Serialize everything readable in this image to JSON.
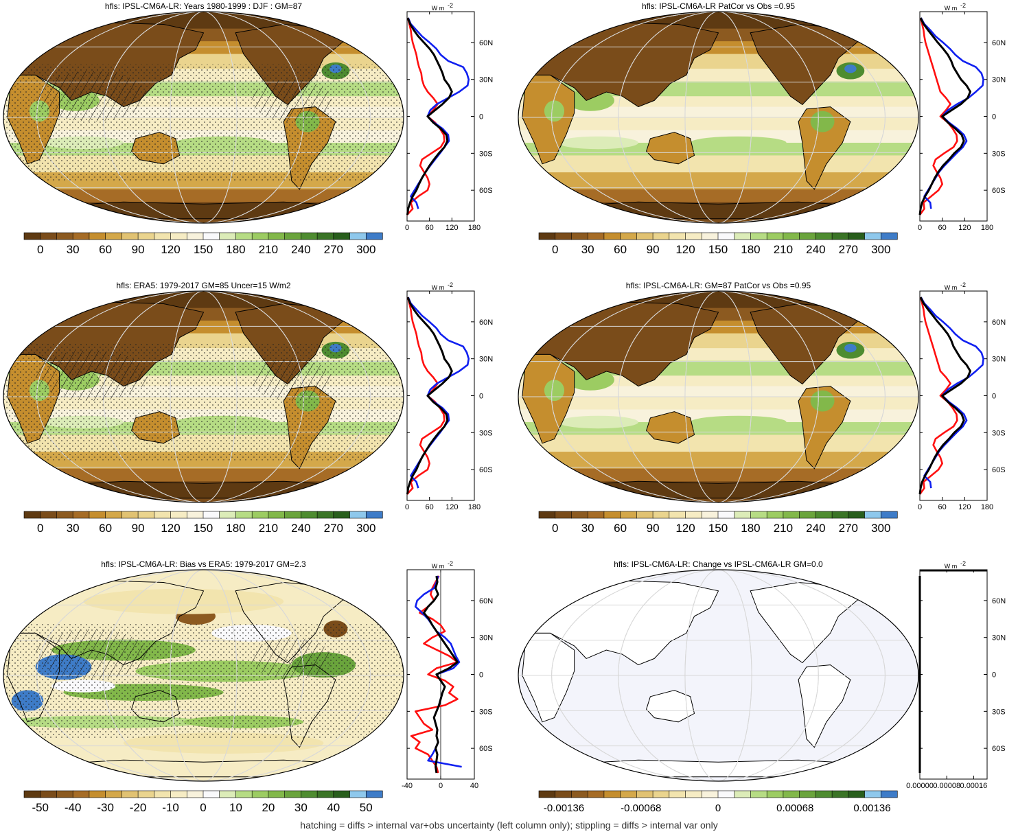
{
  "colors": {
    "map_palette": [
      "#5e3a12",
      "#7a4c1a",
      "#8c5a20",
      "#a66c26",
      "#c58e2e",
      "#d4a84a",
      "#e1c272",
      "#ead48e",
      "#f2e4ae",
      "#f6ecc4",
      "#f8f2dc",
      "#f9f9fb",
      "#dcecb8",
      "#b6dc84",
      "#9ccc62",
      "#82b84a",
      "#6aa43c",
      "#4e8c30",
      "#3a7426",
      "#285e1c",
      "#8ec8ec",
      "#3e7cc8"
    ],
    "model": "#000000",
    "obs_a": "#ff1010",
    "obs_b": "#1020f0",
    "ocean_blank": "#f3f4fb"
  },
  "panels": [
    {
      "id": "model-clim",
      "title": "hfls: IPSL-CM6A-LR: Years 1980-1999 : DJF : GM=87",
      "pattern": "clim",
      "colorbar_ticks": [
        "0",
        "30",
        "60",
        "90",
        "120",
        "150",
        "180",
        "210",
        "240",
        "270",
        "300"
      ],
      "hatched": true,
      "stippled": true
    },
    {
      "id": "model-alt",
      "title": "hfls: IPSL-CM6A-LR PatCor vs Obs =0.95",
      "pattern": "clim",
      "colorbar_ticks": [
        "0",
        "30",
        "60",
        "90",
        "120",
        "150",
        "180",
        "210",
        "240",
        "270",
        "300"
      ],
      "hatched": false,
      "stippled": false
    },
    {
      "id": "obs-clim",
      "title": "hfls: ERA5: 1979-2017 GM=85 Uncer=15 W/m2",
      "pattern": "clim",
      "colorbar_ticks": [
        "0",
        "30",
        "60",
        "90",
        "120",
        "150",
        "180",
        "210",
        "240",
        "270",
        "300"
      ],
      "hatched": true,
      "stippled": true
    },
    {
      "id": "model-patcor",
      "title": "hfls: IPSL-CM6A-LR: GM=87 PatCor vs Obs =0.95",
      "pattern": "clim",
      "colorbar_ticks": [
        "0",
        "30",
        "60",
        "90",
        "120",
        "150",
        "180",
        "210",
        "240",
        "270",
        "300"
      ],
      "hatched": false,
      "stippled": false
    },
    {
      "id": "bias",
      "title": "hfls: IPSL-CM6A-LR: Bias vs ERA5: 1979-2017 GM=2.3",
      "pattern": "bias",
      "colorbar_ticks": [
        "-50",
        "-40",
        "-30",
        "-20",
        "-10",
        "0",
        "10",
        "20",
        "30",
        "40",
        "50"
      ],
      "hatched": true,
      "stippled": true
    },
    {
      "id": "change",
      "title": "hfls: IPSL-CM6A-LR: Change vs IPSL-CM6A-LR GM=0.0",
      "pattern": "blank",
      "colorbar_ticks": [
        "-0.00136",
        "-0.00068",
        "0",
        "0.00068",
        "0.00136"
      ],
      "hatched": false,
      "stippled": false
    }
  ],
  "zonal_panels": [
    {
      "unit": "W m",
      "unit_sup": "-2",
      "x_ticks": [
        "0",
        "60",
        "120",
        "180"
      ],
      "xlim": [
        0,
        180
      ],
      "y_ticks": [
        "60N",
        "30N",
        "0",
        "30S",
        "60S"
      ],
      "y_tick_values": [
        60,
        30,
        0,
        -30,
        -60
      ],
      "ylim": [
        -85,
        85
      ],
      "lat": [
        80,
        75,
        70,
        65,
        60,
        55,
        50,
        45,
        40,
        35,
        30,
        25,
        20,
        15,
        10,
        5,
        0,
        -5,
        -10,
        -15,
        -20,
        -25,
        -30,
        -35,
        -40,
        -45,
        -50,
        -55,
        -60,
        -65,
        -70,
        -75,
        -80
      ],
      "series": [
        {
          "role": "model",
          "values": [
            2,
            8,
            18,
            30,
            45,
            60,
            72,
            80,
            88,
            95,
            100,
            112,
            120,
            112,
            95,
            75,
            55,
            70,
            90,
            105,
            108,
            100,
            85,
            72,
            60,
            50,
            40,
            32,
            25,
            15,
            8,
            3,
            1
          ]
        },
        {
          "role": "obs_a",
          "values": [
            2,
            6,
            10,
            12,
            15,
            20,
            25,
            28,
            32,
            38,
            40,
            45,
            55,
            70,
            82,
            70,
            55,
            75,
            88,
            98,
            100,
            90,
            65,
            40,
            35,
            45,
            55,
            60,
            55,
            30,
            10,
            15,
            0
          ]
        },
        {
          "role": "obs_b",
          "values": [
            3,
            10,
            25,
            40,
            60,
            78,
            90,
            110,
            150,
            160,
            165,
            162,
            140,
            110,
            80,
            62,
            55,
            72,
            95,
            110,
            112,
            100,
            88,
            75,
            62,
            50,
            40,
            30,
            20,
            10,
            25,
            30,
            null
          ]
        }
      ]
    },
    {
      "unit": "W m",
      "unit_sup": "-2",
      "x_ticks": [
        "0",
        "60",
        "120",
        "180"
      ],
      "xlim": [
        0,
        180
      ],
      "y_ticks": [
        "60N",
        "30N",
        "0",
        "30S",
        "60S"
      ],
      "y_tick_values": [
        60,
        30,
        0,
        -30,
        -60
      ],
      "ylim": [
        -85,
        85
      ],
      "lat": [
        80,
        75,
        70,
        65,
        60,
        55,
        50,
        45,
        40,
        35,
        30,
        25,
        20,
        15,
        10,
        5,
        0,
        -5,
        -10,
        -15,
        -20,
        -25,
        -30,
        -35,
        -40,
        -45,
        -50,
        -55,
        -60,
        -65,
        -70,
        -75,
        -80
      ],
      "series": [
        {
          "role": "model",
          "values": [
            2,
            10,
            22,
            35,
            48,
            62,
            75,
            84,
            90,
            100,
            110,
            125,
            135,
            128,
            110,
            85,
            60,
            75,
            95,
            112,
            118,
            110,
            92,
            78,
            62,
            50,
            40,
            32,
            24,
            14,
            6,
            2,
            0
          ]
        },
        {
          "role": "obs_a",
          "values": [
            2,
            6,
            10,
            12,
            15,
            20,
            25,
            30,
            35,
            40,
            45,
            50,
            55,
            70,
            82,
            70,
            55,
            75,
            88,
            98,
            100,
            90,
            65,
            42,
            36,
            45,
            55,
            60,
            50,
            30,
            10,
            12,
            0
          ]
        },
        {
          "role": "obs_b",
          "values": [
            3,
            12,
            28,
            42,
            62,
            80,
            95,
            115,
            150,
            165,
            170,
            168,
            150,
            130,
            100,
            75,
            60,
            78,
            100,
            118,
            125,
            115,
            98,
            82,
            66,
            52,
            42,
            32,
            22,
            12,
            28,
            30,
            null
          ]
        }
      ]
    },
    {
      "unit": "W m",
      "unit_sup": "-2",
      "x_ticks": [
        "0",
        "60",
        "120",
        "180"
      ],
      "xlim": [
        0,
        180
      ],
      "y_ticks": [
        "60N",
        "30N",
        "0",
        "30S",
        "60S"
      ],
      "y_tick_values": [
        60,
        30,
        0,
        -30,
        -60
      ],
      "ylim": [
        -85,
        85
      ],
      "lat": [
        80,
        75,
        70,
        65,
        60,
        55,
        50,
        45,
        40,
        35,
        30,
        25,
        20,
        15,
        10,
        5,
        0,
        -5,
        -10,
        -15,
        -20,
        -25,
        -30,
        -35,
        -40,
        -45,
        -50,
        -55,
        -60,
        -65,
        -70,
        -75,
        -80
      ],
      "series": [
        {
          "role": "model",
          "values": [
            2,
            8,
            18,
            30,
            45,
            60,
            72,
            80,
            88,
            95,
            100,
            112,
            120,
            112,
            95,
            75,
            55,
            70,
            90,
            105,
            108,
            100,
            85,
            72,
            60,
            50,
            40,
            32,
            25,
            15,
            8,
            3,
            1
          ]
        },
        {
          "role": "obs_a",
          "values": [
            2,
            6,
            10,
            12,
            15,
            20,
            25,
            28,
            32,
            38,
            40,
            45,
            55,
            70,
            82,
            70,
            55,
            75,
            88,
            98,
            100,
            90,
            65,
            40,
            35,
            45,
            55,
            60,
            55,
            30,
            10,
            15,
            0
          ]
        },
        {
          "role": "obs_b",
          "values": [
            3,
            10,
            25,
            40,
            60,
            78,
            90,
            110,
            150,
            160,
            165,
            162,
            140,
            110,
            80,
            62,
            55,
            72,
            95,
            110,
            112,
            100,
            88,
            75,
            62,
            50,
            40,
            30,
            20,
            10,
            25,
            30,
            null
          ]
        }
      ]
    },
    {
      "unit": "W m",
      "unit_sup": "-2",
      "x_ticks": [
        "0",
        "60",
        "120",
        "180"
      ],
      "xlim": [
        0,
        180
      ],
      "y_ticks": [
        "60N",
        "30N",
        "0",
        "30S",
        "60S"
      ],
      "y_tick_values": [
        60,
        30,
        0,
        -30,
        -60
      ],
      "ylim": [
        -85,
        85
      ],
      "lat": [
        80,
        75,
        70,
        65,
        60,
        55,
        50,
        45,
        40,
        35,
        30,
        25,
        20,
        15,
        10,
        5,
        0,
        -5,
        -10,
        -15,
        -20,
        -25,
        -30,
        -35,
        -40,
        -45,
        -50,
        -55,
        -60,
        -65,
        -70,
        -75,
        -80
      ],
      "series": [
        {
          "role": "model",
          "values": [
            2,
            10,
            22,
            35,
            48,
            62,
            75,
            84,
            90,
            100,
            110,
            125,
            135,
            128,
            110,
            85,
            60,
            75,
            95,
            112,
            118,
            110,
            92,
            78,
            62,
            50,
            40,
            32,
            24,
            14,
            6,
            2,
            0
          ]
        },
        {
          "role": "obs_a",
          "values": [
            2,
            6,
            10,
            12,
            15,
            20,
            25,
            30,
            35,
            40,
            45,
            50,
            55,
            70,
            82,
            70,
            55,
            75,
            88,
            98,
            100,
            90,
            65,
            42,
            36,
            45,
            55,
            60,
            50,
            30,
            10,
            12,
            0
          ]
        },
        {
          "role": "obs_b",
          "values": [
            3,
            12,
            28,
            42,
            62,
            80,
            95,
            115,
            150,
            165,
            170,
            168,
            150,
            130,
            100,
            75,
            60,
            78,
            100,
            118,
            125,
            115,
            98,
            82,
            66,
            52,
            42,
            32,
            22,
            12,
            28,
            30,
            null
          ]
        }
      ]
    },
    {
      "unit": "W m",
      "unit_sup": "-2",
      "x_ticks": [
        "-40",
        "0",
        "40"
      ],
      "xlim": [
        -40,
        40
      ],
      "y_ticks": [
        "60N",
        "30N",
        "0",
        "30S",
        "60S"
      ],
      "y_tick_values": [
        60,
        30,
        0,
        -30,
        -60
      ],
      "ylim": [
        -85,
        85
      ],
      "lat": [
        80,
        75,
        70,
        65,
        60,
        55,
        50,
        45,
        40,
        35,
        30,
        25,
        20,
        15,
        10,
        5,
        0,
        -5,
        -10,
        -15,
        -20,
        -25,
        -30,
        -35,
        -40,
        -45,
        -50,
        -55,
        -60,
        -65,
        -70,
        -75,
        -80
      ],
      "series": [
        {
          "role": "model",
          "values": [
            -5,
            -4,
            -6,
            -3,
            -8,
            -15,
            -20,
            -14,
            -10,
            -5,
            0,
            5,
            10,
            15,
            20,
            10,
            -5,
            0,
            5,
            2,
            0,
            -2,
            -5,
            -8,
            -6,
            -4,
            -5,
            -3,
            -6,
            -4,
            -5,
            -6,
            -5
          ]
        },
        {
          "role": "obs_a",
          "values": [
            -2,
            -6,
            -10,
            -12,
            -8,
            -15,
            -25,
            -10,
            0,
            5,
            -10,
            -20,
            -5,
            10,
            20,
            -5,
            -15,
            5,
            15,
            10,
            20,
            5,
            -30,
            -25,
            -20,
            -10,
            -35,
            -25,
            -30,
            -15,
            -10,
            -5,
            -3
          ]
        },
        {
          "role": "obs_b",
          "values": [
            -3,
            -5,
            -8,
            -20,
            -28,
            -30,
            -22,
            -15,
            -10,
            -5,
            5,
            12,
            15,
            18,
            22,
            15,
            -5,
            0,
            5,
            2,
            0,
            -2,
            -5,
            -8,
            -6,
            -4,
            -5,
            -3,
            -6,
            -10,
            -15,
            25,
            null
          ]
        }
      ]
    },
    {
      "unit": "W m",
      "unit_sup": "-2",
      "x_ticks": [
        "0.00000",
        "0.00008",
        "0.00016"
      ],
      "xlim": [
        0,
        0.0002
      ],
      "y_ticks": [
        "60N",
        "30N",
        "0",
        "30S",
        "60S"
      ],
      "y_tick_values": [
        60,
        30,
        0,
        -30,
        -60
      ],
      "ylim": [
        -85,
        85
      ],
      "lat": [
        80,
        75,
        70,
        65,
        60,
        55,
        50,
        45,
        40,
        35,
        30,
        25,
        20,
        15,
        10,
        5,
        0,
        -5,
        -10,
        -15,
        -20,
        -25,
        -30,
        -35,
        -40,
        -45,
        -50,
        -55,
        -60,
        -65,
        -70,
        -75,
        -80
      ],
      "series": [
        {
          "role": "model",
          "values": [
            0,
            0,
            0,
            0,
            0,
            0,
            0,
            0,
            0,
            0,
            0,
            0,
            0,
            0,
            0,
            0,
            0,
            0,
            0,
            0,
            0,
            0,
            0,
            0,
            0,
            0,
            0,
            0,
            0,
            0,
            0,
            0,
            0
          ]
        }
      ]
    }
  ],
  "footer": "hatching = diffs > internal var+obs uncertainty (left column only); stippling = diffs > internal var only",
  "chart_data": {
    "type": "line",
    "title": "",
    "xlabel": "W m-2",
    "ylabel": "",
    "ylim": [
      -85,
      85
    ]
  }
}
